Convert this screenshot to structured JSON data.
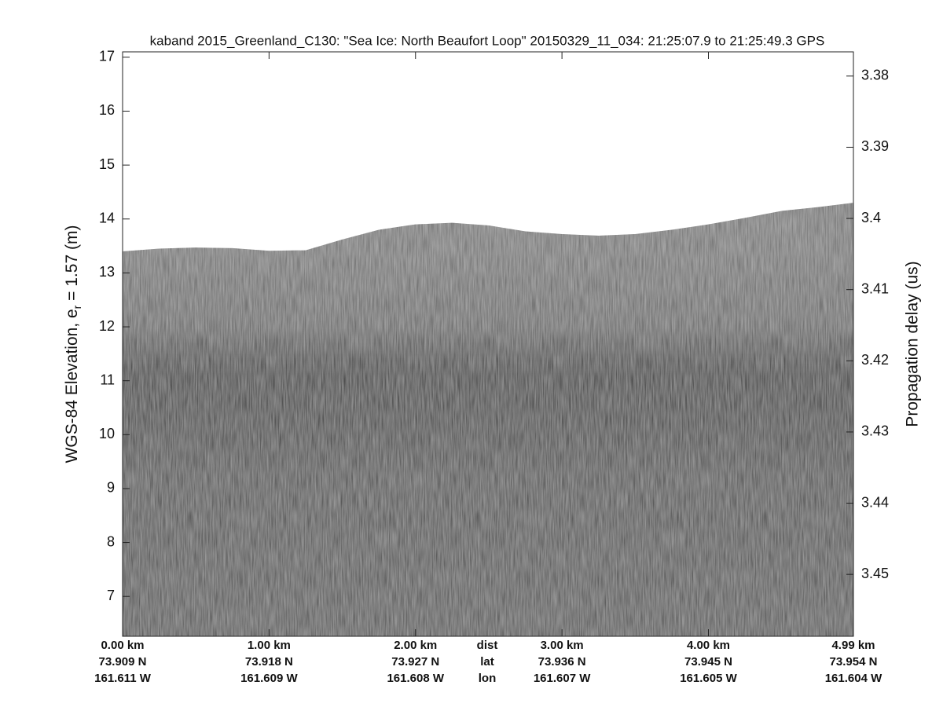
{
  "chart_data": {
    "type": "echogram",
    "title": "kaband 2015_Greenland_C130: \"Sea Ice: North Beaufort Loop\"  20150329_11_034: 21:25:07.9 to 21:25:49.3 GPS",
    "ylabel": [
      "WGS-84 Elevation, e",
      "r",
      " = 1.57 (m)"
    ],
    "y2label": "Propagation delay (us)",
    "x": [
      0,
      0.25,
      0.5,
      0.75,
      1.0,
      1.25,
      1.5,
      1.75,
      2.0,
      2.25,
      2.5,
      2.75,
      3.0,
      3.25,
      3.5,
      3.75,
      4.0,
      4.25,
      4.5,
      4.75,
      4.99
    ],
    "values": [
      13.4,
      13.45,
      13.47,
      13.46,
      13.41,
      13.42,
      13.62,
      13.8,
      13.9,
      13.93,
      13.88,
      13.77,
      13.72,
      13.69,
      13.72,
      13.8,
      13.9,
      14.02,
      14.15,
      14.22,
      14.3
    ],
    "xlim": [
      0,
      4.99
    ],
    "xticks": [
      {
        "value": 0,
        "label": "0.00 km"
      },
      {
        "value": 1,
        "label": "1.00 km"
      },
      {
        "value": 2,
        "label": "2.00 km"
      },
      {
        "value": 3,
        "label": "3.00 km"
      },
      {
        "value": 4,
        "label": "4.00 km"
      },
      {
        "value": 4.99,
        "label": "4.99 km"
      }
    ],
    "lat_labels": [
      "73.909 N",
      "73.918 N",
      "73.927 N",
      "73.936 N",
      "73.945 N",
      "73.954 N"
    ],
    "lon_labels": [
      "161.611 W",
      "161.609 W",
      "161.608 W",
      "161.607 W",
      "161.605 W",
      "161.604 W"
    ],
    "row_names": [
      "dist",
      "lat",
      "lon"
    ],
    "ylim": [
      6.26,
      17.1
    ],
    "yticks": [
      7,
      8,
      9,
      10,
      11,
      12,
      13,
      14,
      15,
      16,
      17
    ],
    "y2lim": [
      3.4587,
      3.3766
    ],
    "y2ticks": [
      3.38,
      3.39,
      3.4,
      3.41,
      3.42,
      3.43,
      3.44,
      3.45
    ]
  }
}
